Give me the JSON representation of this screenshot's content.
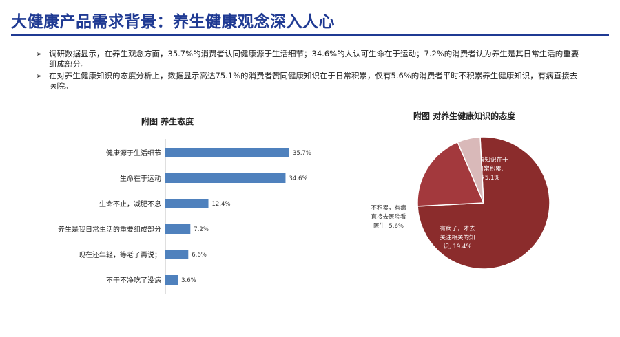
{
  "page": {
    "title": "大健康产品需求背景：养生健康观念深入人心",
    "bullets": [
      {
        "mark": "➢",
        "text": "调研数据显示，在养生观念方面，35.7%的消费者认同健康源于生活细节；34.6%的人认可生命在于运动；7.2%的消费者认为养生是其日常生活的重要组成部分。"
      },
      {
        "mark": "➢",
        "text": "在对养生健康知识的态度分析上，数据显示高达75.1%的消费者赞同健康知识在于日常积累，仅有5.6%的消费者平时不积累养生健康知识，有病直接去医院。"
      }
    ]
  },
  "colors": {
    "title": "#1f3a93",
    "bar": "#4f81bd",
    "pie_main": "#8b2c2c",
    "pie_secondary": "#a3393d",
    "pie_light": "#d9b9b9"
  },
  "chart_data": [
    {
      "type": "bar",
      "orientation": "horizontal",
      "title": "附图 养生态度",
      "categories": [
        "健康源于生活细节",
        "生命在于运动",
        "生命不止，减肥不息",
        "养生是我日常生活的重要组成部分",
        "现在还年轻，等老了再说；",
        "不干不净吃了没病"
      ],
      "values": [
        35.7,
        34.6,
        12.4,
        7.2,
        6.6,
        3.6
      ],
      "value_labels": [
        "35.7%",
        "34.6%",
        "12.4%",
        "7.2%",
        "6.6%",
        "3.6%"
      ],
      "xlim": [
        0,
        40
      ],
      "grid": false
    },
    {
      "type": "pie",
      "title": "附图 对养生健康知识的态度",
      "slices": [
        {
          "label": [
            "健康知识在于",
            "日常积累,",
            "75.1%"
          ],
          "value": 75.1,
          "color": "#8b2c2c"
        },
        {
          "label": [
            "有病了，才去",
            "关注相关的知",
            "识, 19.4%"
          ],
          "value": 19.4,
          "color": "#a3393d"
        },
        {
          "label": [
            "不积累，有病",
            "直接去医院看",
            "医生, 5.6%"
          ],
          "value": 5.6,
          "color": "#d9b9b9"
        }
      ]
    }
  ]
}
